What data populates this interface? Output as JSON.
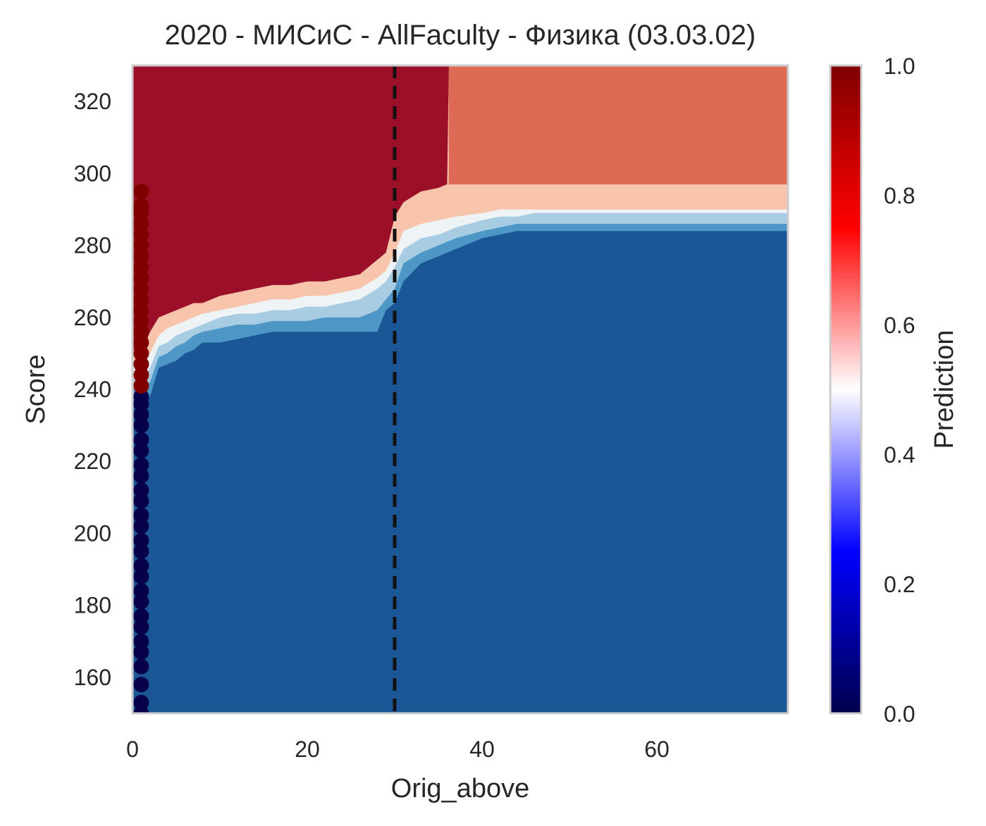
{
  "chart_data": {
    "type": "heatmap",
    "title": "2020 - МИСиС - AllFaculty - Физика (03.03.02)",
    "xlabel": "Orig_above",
    "ylabel": "Score",
    "xlim": [
      0,
      75
    ],
    "ylim": [
      150,
      330
    ],
    "xticks": [
      0,
      20,
      40,
      60
    ],
    "yticks": [
      160,
      180,
      200,
      220,
      240,
      260,
      280,
      300,
      320
    ],
    "grid": false,
    "threshold_line": {
      "x": 30,
      "style": "dashed",
      "color": "#111111"
    },
    "contour_levels": [
      0.0,
      0.125,
      0.25,
      0.375,
      0.5,
      0.625,
      0.75,
      0.875,
      1.0
    ],
    "contour_colors": [
      "#1b5796",
      "#4c97c5",
      "#a8cde3",
      "#eef3f6",
      "#f8c4ac",
      "#de6955",
      "#9b1028"
    ],
    "decision_boundaries": [
      {
        "level": "outer-blue",
        "points": [
          [
            1.2,
            237
          ],
          [
            2,
            238
          ],
          [
            3,
            246
          ],
          [
            4,
            247
          ],
          [
            5,
            248
          ],
          [
            6,
            250
          ],
          [
            7,
            251
          ],
          [
            8,
            253
          ],
          [
            10,
            253
          ],
          [
            12,
            254
          ],
          [
            14,
            255
          ],
          [
            16,
            256
          ],
          [
            18,
            256
          ],
          [
            20,
            256
          ],
          [
            22,
            256
          ],
          [
            24,
            256
          ],
          [
            26,
            256
          ],
          [
            28,
            256
          ],
          [
            29,
            262
          ],
          [
            30,
            264
          ],
          [
            31,
            270
          ],
          [
            33,
            275
          ],
          [
            35,
            277
          ],
          [
            36,
            278
          ],
          [
            38,
            280
          ],
          [
            40,
            282
          ],
          [
            42,
            283
          ],
          [
            44,
            284
          ],
          [
            46,
            284
          ],
          [
            48,
            284
          ],
          [
            50,
            284
          ],
          [
            55,
            284
          ],
          [
            60,
            284
          ],
          [
            65,
            284
          ],
          [
            70,
            284
          ],
          [
            75,
            284
          ]
        ]
      },
      {
        "level": "light-blue",
        "points": [
          [
            1.2,
            240
          ],
          [
            2,
            242
          ],
          [
            3,
            249
          ],
          [
            4,
            250
          ],
          [
            5,
            252
          ],
          [
            6,
            253
          ],
          [
            7,
            255
          ],
          [
            8,
            256
          ],
          [
            10,
            257
          ],
          [
            12,
            258
          ],
          [
            14,
            258
          ],
          [
            16,
            259
          ],
          [
            18,
            259
          ],
          [
            20,
            259
          ],
          [
            22,
            260
          ],
          [
            24,
            260
          ],
          [
            26,
            260
          ],
          [
            28,
            262
          ],
          [
            29,
            265
          ],
          [
            30,
            268
          ],
          [
            31,
            275
          ],
          [
            33,
            278
          ],
          [
            35,
            280
          ],
          [
            37,
            282
          ],
          [
            40,
            284
          ],
          [
            42,
            285
          ],
          [
            44,
            286
          ],
          [
            46,
            286
          ],
          [
            48,
            286
          ],
          [
            50,
            286
          ],
          [
            55,
            286
          ],
          [
            60,
            286
          ],
          [
            65,
            286
          ],
          [
            70,
            286
          ],
          [
            75,
            286
          ]
        ]
      },
      {
        "level": "white",
        "points": [
          [
            1.2,
            243
          ],
          [
            2,
            246
          ],
          [
            3,
            252
          ],
          [
            4,
            253
          ],
          [
            5,
            255
          ],
          [
            6,
            256
          ],
          [
            7,
            257
          ],
          [
            8,
            258
          ],
          [
            10,
            260
          ],
          [
            12,
            261
          ],
          [
            14,
            261
          ],
          [
            16,
            262
          ],
          [
            18,
            262
          ],
          [
            20,
            263
          ],
          [
            22,
            263
          ],
          [
            24,
            264
          ],
          [
            26,
            265
          ],
          [
            28,
            268
          ],
          [
            29,
            270
          ],
          [
            30,
            274
          ],
          [
            31,
            279
          ],
          [
            33,
            282
          ],
          [
            35,
            283
          ],
          [
            37,
            285
          ],
          [
            40,
            287
          ],
          [
            42,
            288
          ],
          [
            44,
            288
          ],
          [
            46,
            289
          ],
          [
            48,
            289
          ],
          [
            50,
            289
          ],
          [
            55,
            289
          ],
          [
            60,
            289
          ],
          [
            65,
            289
          ],
          [
            70,
            289
          ],
          [
            75,
            289
          ]
        ]
      },
      {
        "level": "light-red",
        "points": [
          [
            1.2,
            247
          ],
          [
            2,
            250
          ],
          [
            3,
            255
          ],
          [
            4,
            257
          ],
          [
            5,
            258
          ],
          [
            6,
            259
          ],
          [
            7,
            260
          ],
          [
            8,
            261
          ],
          [
            10,
            262
          ],
          [
            12,
            263
          ],
          [
            14,
            264
          ],
          [
            16,
            265
          ],
          [
            18,
            265
          ],
          [
            20,
            266
          ],
          [
            22,
            266
          ],
          [
            24,
            267
          ],
          [
            26,
            268
          ],
          [
            28,
            271
          ],
          [
            29,
            273
          ],
          [
            30,
            278
          ],
          [
            31,
            284
          ],
          [
            33,
            286
          ],
          [
            35,
            287
          ],
          [
            37,
            288
          ],
          [
            40,
            289
          ],
          [
            42,
            290
          ],
          [
            44,
            290
          ],
          [
            46,
            290
          ],
          [
            48,
            290
          ],
          [
            50,
            290
          ],
          [
            55,
            290
          ],
          [
            60,
            290
          ],
          [
            65,
            290
          ],
          [
            70,
            290
          ],
          [
            75,
            290
          ]
        ]
      },
      {
        "level": "red",
        "points": [
          [
            1.2,
            251
          ],
          [
            2,
            256
          ],
          [
            3,
            260
          ],
          [
            4,
            261
          ],
          [
            5,
            262
          ],
          [
            6,
            263
          ],
          [
            7,
            264
          ],
          [
            8,
            264
          ],
          [
            10,
            266
          ],
          [
            12,
            267
          ],
          [
            14,
            268
          ],
          [
            16,
            269
          ],
          [
            18,
            269
          ],
          [
            20,
            270
          ],
          [
            22,
            270
          ],
          [
            24,
            271
          ],
          [
            26,
            272
          ],
          [
            28,
            276
          ],
          [
            29,
            278
          ],
          [
            30,
            288
          ],
          [
            31,
            292
          ],
          [
            33,
            295
          ],
          [
            35,
            296
          ],
          [
            36,
            297
          ],
          [
            36.2,
            330
          ]
        ]
      },
      {
        "level": "top-red-band",
        "points": [
          [
            36.2,
            330
          ],
          [
            36.2,
            297
          ],
          [
            40,
            297
          ],
          [
            45,
            297
          ],
          [
            50,
            297
          ],
          [
            55,
            297
          ],
          [
            60,
            297
          ],
          [
            65,
            297
          ],
          [
            70,
            297
          ],
          [
            75,
            297
          ]
        ]
      }
    ],
    "scatter": {
      "x": 1,
      "description_values": [
        150,
        153,
        158,
        163,
        167,
        170,
        174,
        177,
        181,
        184,
        188,
        191,
        195,
        198,
        202,
        205,
        209,
        212,
        216,
        219,
        223,
        226,
        230,
        233,
        236,
        238,
        241,
        244,
        247,
        250,
        253,
        256,
        259,
        262,
        265,
        268,
        271,
        274,
        277,
        280,
        283,
        286,
        289,
        291,
        295
      ],
      "low_color": "#06004a",
      "high_color": "#800000",
      "split_at": 239
    },
    "colorbar": {
      "label": "Prediction",
      "range": [
        0.0,
        1.0
      ],
      "ticks": [
        "0.0",
        "0.2",
        "0.4",
        "0.6",
        "0.8",
        "1.0"
      ],
      "colormap": "seismic"
    }
  }
}
